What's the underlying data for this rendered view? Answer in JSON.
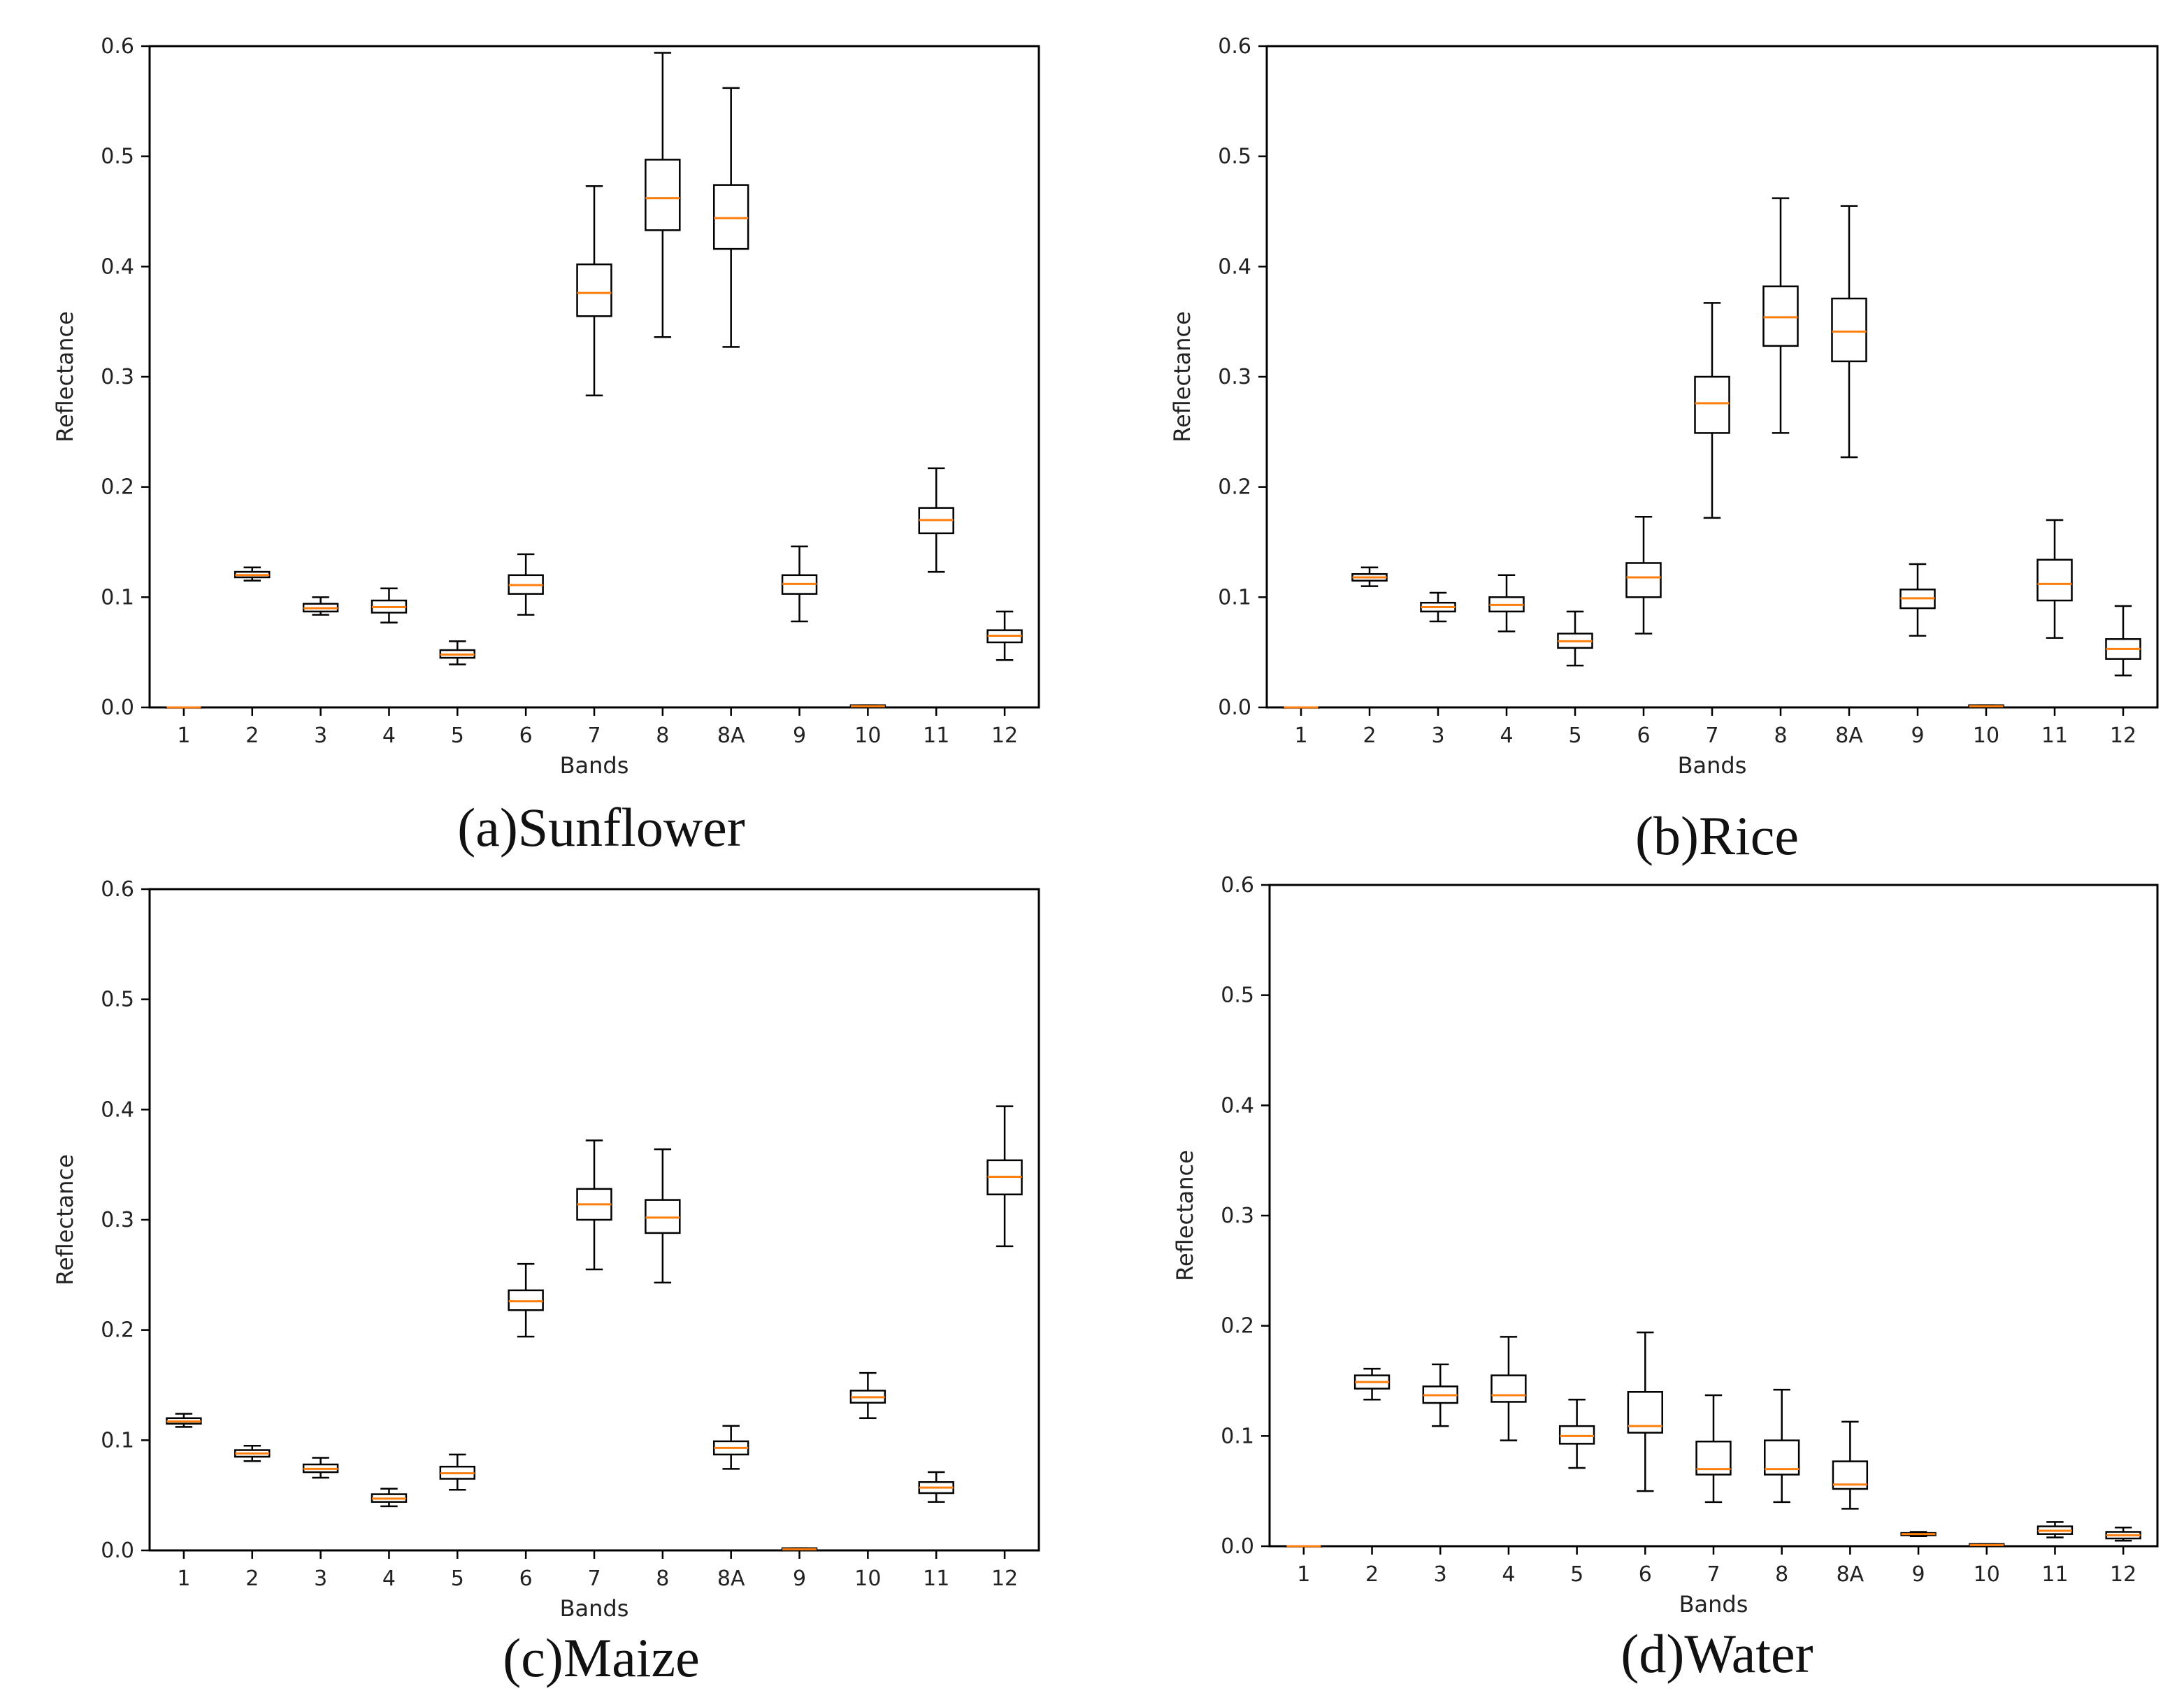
{
  "chart_data": [
    {
      "type": "boxplot",
      "caption": "(a)Sunflower",
      "xlabel": "Bands",
      "ylabel": "Reflectance",
      "ylim": [
        0,
        0.6
      ],
      "yticks": [
        "0.0",
        "0.1",
        "0.2",
        "0.3",
        "0.4",
        "0.5",
        "0.6"
      ],
      "categories": [
        "1",
        "2",
        "3",
        "4",
        "5",
        "6",
        "7",
        "8",
        "8A",
        "9",
        "10",
        "11",
        "12"
      ],
      "boxes": [
        {
          "band": "1",
          "whislo": 0.0,
          "q1": 0.0,
          "med": 0.0,
          "q3": 0.0,
          "whishi": 0.0
        },
        {
          "band": "2",
          "whislo": 0.115,
          "q1": 0.118,
          "med": 0.12,
          "q3": 0.123,
          "whishi": 0.127
        },
        {
          "band": "3",
          "whislo": 0.084,
          "q1": 0.087,
          "med": 0.09,
          "q3": 0.094,
          "whishi": 0.1
        },
        {
          "band": "4",
          "whislo": 0.077,
          "q1": 0.086,
          "med": 0.091,
          "q3": 0.097,
          "whishi": 0.108
        },
        {
          "band": "5",
          "whislo": 0.039,
          "q1": 0.045,
          "med": 0.048,
          "q3": 0.052,
          "whishi": 0.06
        },
        {
          "band": "6",
          "whislo": 0.084,
          "q1": 0.103,
          "med": 0.111,
          "q3": 0.12,
          "whishi": 0.139
        },
        {
          "band": "7",
          "whislo": 0.283,
          "q1": 0.355,
          "med": 0.376,
          "q3": 0.402,
          "whishi": 0.473
        },
        {
          "band": "8",
          "whislo": 0.336,
          "q1": 0.433,
          "med": 0.462,
          "q3": 0.497,
          "whishi": 0.594
        },
        {
          "band": "8A",
          "whislo": 0.327,
          "q1": 0.416,
          "med": 0.444,
          "q3": 0.474,
          "whishi": 0.562
        },
        {
          "band": "9",
          "whislo": 0.078,
          "q1": 0.103,
          "med": 0.112,
          "q3": 0.12,
          "whishi": 0.146
        },
        {
          "band": "10",
          "whislo": 0.001,
          "q1": 0.001,
          "med": 0.001,
          "q3": 0.002,
          "whishi": 0.002
        },
        {
          "band": "11",
          "whislo": 0.123,
          "q1": 0.158,
          "med": 0.17,
          "q3": 0.181,
          "whishi": 0.217
        },
        {
          "band": "12",
          "whislo": 0.043,
          "q1": 0.059,
          "med": 0.065,
          "q3": 0.07,
          "whishi": 0.087
        }
      ]
    },
    {
      "type": "boxplot",
      "caption": "(b)Rice",
      "xlabel": "Bands",
      "ylabel": "Reflectance",
      "ylim": [
        0,
        0.6
      ],
      "yticks": [
        "0.0",
        "0.1",
        "0.2",
        "0.3",
        "0.4",
        "0.5",
        "0.6"
      ],
      "categories": [
        "1",
        "2",
        "3",
        "4",
        "5",
        "6",
        "7",
        "8",
        "8A",
        "9",
        "10",
        "11",
        "12"
      ],
      "boxes": [
        {
          "band": "1",
          "whislo": 0.0,
          "q1": 0.0,
          "med": 0.0,
          "q3": 0.0,
          "whishi": 0.0
        },
        {
          "band": "2",
          "whislo": 0.11,
          "q1": 0.115,
          "med": 0.118,
          "q3": 0.121,
          "whishi": 0.127
        },
        {
          "band": "3",
          "whislo": 0.078,
          "q1": 0.087,
          "med": 0.091,
          "q3": 0.095,
          "whishi": 0.104
        },
        {
          "band": "4",
          "whislo": 0.069,
          "q1": 0.087,
          "med": 0.093,
          "q3": 0.1,
          "whishi": 0.12
        },
        {
          "band": "5",
          "whislo": 0.038,
          "q1": 0.054,
          "med": 0.06,
          "q3": 0.067,
          "whishi": 0.087
        },
        {
          "band": "6",
          "whislo": 0.067,
          "q1": 0.1,
          "med": 0.118,
          "q3": 0.131,
          "whishi": 0.173
        },
        {
          "band": "7",
          "whislo": 0.172,
          "q1": 0.249,
          "med": 0.276,
          "q3": 0.3,
          "whishi": 0.367
        },
        {
          "band": "8",
          "whislo": 0.249,
          "q1": 0.328,
          "med": 0.354,
          "q3": 0.382,
          "whishi": 0.462
        },
        {
          "band": "8A",
          "whislo": 0.227,
          "q1": 0.314,
          "med": 0.341,
          "q3": 0.371,
          "whishi": 0.455
        },
        {
          "band": "9",
          "whislo": 0.065,
          "q1": 0.09,
          "med": 0.099,
          "q3": 0.107,
          "whishi": 0.13
        },
        {
          "band": "10",
          "whislo": 0.001,
          "q1": 0.001,
          "med": 0.001,
          "q3": 0.002,
          "whishi": 0.002
        },
        {
          "band": "11",
          "whislo": 0.063,
          "q1": 0.097,
          "med": 0.112,
          "q3": 0.134,
          "whishi": 0.17
        },
        {
          "band": "12",
          "whislo": 0.029,
          "q1": 0.044,
          "med": 0.053,
          "q3": 0.062,
          "whishi": 0.092
        }
      ]
    },
    {
      "type": "boxplot",
      "caption": "(c)Maize",
      "xlabel": "Bands",
      "ylabel": "Reflectance",
      "ylim": [
        0,
        0.6
      ],
      "yticks": [
        "0.0",
        "0.1",
        "0.2",
        "0.3",
        "0.4",
        "0.5",
        "0.6"
      ],
      "categories": [
        "1",
        "2",
        "3",
        "4",
        "5",
        "6",
        "7",
        "8",
        "8A",
        "9",
        "10",
        "11",
        "12"
      ],
      "boxes": [
        {
          "band": "1",
          "whislo": 0.112,
          "q1": 0.115,
          "med": 0.117,
          "q3": 0.12,
          "whishi": 0.124
        },
        {
          "band": "2",
          "whislo": 0.081,
          "q1": 0.085,
          "med": 0.088,
          "q3": 0.091,
          "whishi": 0.095
        },
        {
          "band": "3",
          "whislo": 0.066,
          "q1": 0.071,
          "med": 0.074,
          "q3": 0.078,
          "whishi": 0.084
        },
        {
          "band": "4",
          "whislo": 0.04,
          "q1": 0.044,
          "med": 0.047,
          "q3": 0.051,
          "whishi": 0.056
        },
        {
          "band": "5",
          "whislo": 0.055,
          "q1": 0.065,
          "med": 0.07,
          "q3": 0.076,
          "whishi": 0.087
        },
        {
          "band": "6",
          "whislo": 0.194,
          "q1": 0.218,
          "med": 0.226,
          "q3": 0.236,
          "whishi": 0.26
        },
        {
          "band": "7",
          "whislo": 0.255,
          "q1": 0.3,
          "med": 0.314,
          "q3": 0.328,
          "whishi": 0.372
        },
        {
          "band": "8",
          "whislo": 0.243,
          "q1": 0.288,
          "med": 0.302,
          "q3": 0.318,
          "whishi": 0.364
        },
        {
          "band": "8A",
          "whislo": 0.074,
          "q1": 0.087,
          "med": 0.093,
          "q3": 0.099,
          "whishi": 0.113
        },
        {
          "band": "9",
          "whislo": 0.001,
          "q1": 0.001,
          "med": 0.001,
          "q3": 0.002,
          "whishi": 0.002
        },
        {
          "band": "10",
          "whislo": 0.12,
          "q1": 0.134,
          "med": 0.139,
          "q3": 0.145,
          "whishi": 0.161
        },
        {
          "band": "11",
          "whislo": 0.044,
          "q1": 0.052,
          "med": 0.057,
          "q3": 0.062,
          "whishi": 0.071
        },
        {
          "band": "12",
          "whislo": 0.276,
          "q1": 0.323,
          "med": 0.339,
          "q3": 0.354,
          "whishi": 0.403
        }
      ]
    },
    {
      "type": "boxplot",
      "caption": "(d)Water",
      "xlabel": "Bands",
      "ylabel": "Reflectance",
      "ylim": [
        0,
        0.6
      ],
      "yticks": [
        "0.0",
        "0.1",
        "0.2",
        "0.3",
        "0.4",
        "0.5",
        "0.6"
      ],
      "categories": [
        "1",
        "2",
        "3",
        "4",
        "5",
        "6",
        "7",
        "8",
        "8A",
        "9",
        "10",
        "11",
        "12"
      ],
      "boxes": [
        {
          "band": "1",
          "whislo": 0.0,
          "q1": 0.0,
          "med": 0.0,
          "q3": 0.0,
          "whishi": 0.0
        },
        {
          "band": "2",
          "whislo": 0.133,
          "q1": 0.143,
          "med": 0.149,
          "q3": 0.155,
          "whishi": 0.161
        },
        {
          "band": "3",
          "whislo": 0.109,
          "q1": 0.13,
          "med": 0.137,
          "q3": 0.145,
          "whishi": 0.165
        },
        {
          "band": "4",
          "whislo": 0.096,
          "q1": 0.131,
          "med": 0.137,
          "q3": 0.155,
          "whishi": 0.19
        },
        {
          "band": "5",
          "whislo": 0.071,
          "q1": 0.093,
          "med": 0.1,
          "q3": 0.109,
          "whishi": 0.133
        },
        {
          "band": "6",
          "whislo": 0.05,
          "q1": 0.103,
          "med": 0.109,
          "q3": 0.14,
          "whishi": 0.194
        },
        {
          "band": "7",
          "whislo": 0.04,
          "q1": 0.065,
          "med": 0.07,
          "q3": 0.095,
          "whishi": 0.137
        },
        {
          "band": "8",
          "whislo": 0.04,
          "q1": 0.065,
          "med": 0.07,
          "q3": 0.096,
          "whishi": 0.142
        },
        {
          "band": "8A",
          "whislo": 0.034,
          "q1": 0.052,
          "med": 0.056,
          "q3": 0.077,
          "whishi": 0.113
        },
        {
          "band": "9",
          "whislo": 0.009,
          "q1": 0.01,
          "med": 0.011,
          "q3": 0.012,
          "whishi": 0.013
        },
        {
          "band": "10",
          "whislo": 0.001,
          "q1": 0.001,
          "med": 0.001,
          "q3": 0.002,
          "whishi": 0.002
        },
        {
          "band": "11",
          "whislo": 0.008,
          "q1": 0.011,
          "med": 0.014,
          "q3": 0.018,
          "whishi": 0.022
        },
        {
          "band": "12",
          "whislo": 0.005,
          "q1": 0.007,
          "med": 0.01,
          "q3": 0.013,
          "whishi": 0.017
        }
      ]
    }
  ],
  "colors": {
    "axes": "#000000",
    "box": "#000000",
    "median": "#ff7f0e",
    "text": "#222222",
    "caption": "#111111"
  }
}
